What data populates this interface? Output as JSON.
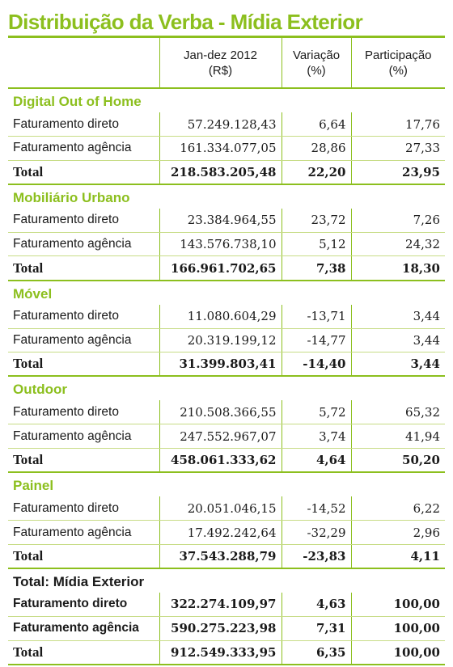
{
  "title": "Distribuição da Verba - Mídia Exterior",
  "columns": {
    "period_l1": "Jan-dez 2012",
    "period_l2": "(R$)",
    "var_l1": "Variação",
    "var_l2": "(%)",
    "part_l1": "Participação",
    "part_l2": "(%)"
  },
  "sections": [
    {
      "name": "Digital Out of Home",
      "rows": [
        {
          "label": "Faturamento direto",
          "value": "57.249.128,43",
          "variation": "6,64",
          "share": "17,76"
        },
        {
          "label": "Faturamento agência",
          "value": "161.334.077,05",
          "variation": "28,86",
          "share": "27,33"
        }
      ],
      "total": {
        "label": "Total",
        "value": "218.583.205,48",
        "variation": "22,20",
        "share": "23,95"
      }
    },
    {
      "name": "Mobiliário Urbano",
      "rows": [
        {
          "label": "Faturamento direto",
          "value": "23.384.964,55",
          "variation": "23,72",
          "share": "7,26"
        },
        {
          "label": "Faturamento agência",
          "value": "143.576.738,10",
          "variation": "5,12",
          "share": "24,32"
        }
      ],
      "total": {
        "label": "Total",
        "value": "166.961.702,65",
        "variation": "7,38",
        "share": "18,30"
      }
    },
    {
      "name": "Móvel",
      "rows": [
        {
          "label": "Faturamento direto",
          "value": "11.080.604,29",
          "variation": "-13,71",
          "share": "3,44"
        },
        {
          "label": "Faturamento agência",
          "value": "20.319.199,12",
          "variation": "-14,77",
          "share": "3,44"
        }
      ],
      "total": {
        "label": "Total",
        "value": "31.399.803,41",
        "variation": "-14,40",
        "share": "3,44"
      }
    },
    {
      "name": "Outdoor",
      "rows": [
        {
          "label": "Faturamento direto",
          "value": "210.508.366,55",
          "variation": "5,72",
          "share": "65,32"
        },
        {
          "label": "Faturamento agência",
          "value": "247.552.967,07",
          "variation": "3,74",
          "share": "41,94"
        }
      ],
      "total": {
        "label": "Total",
        "value": "458.061.333,62",
        "variation": "4,64",
        "share": "50,20"
      }
    },
    {
      "name": "Painel",
      "rows": [
        {
          "label": "Faturamento direto",
          "value": "20.051.046,15",
          "variation": "-14,52",
          "share": "6,22"
        },
        {
          "label": "Faturamento agência",
          "value": "17.492.242,64",
          "variation": "-32,29",
          "share": "2,96"
        }
      ],
      "total": {
        "label": "Total",
        "value": "37.543.288,79",
        "variation": "-23,83",
        "share": "4,11"
      }
    },
    {
      "name": "Total: Mídia Exterior",
      "rows": [
        {
          "label": "Faturamento direto",
          "value": "322.274.109,97",
          "variation": "4,63",
          "share": "100,00"
        },
        {
          "label": "Faturamento agência",
          "value": "590.275.223,98",
          "variation": "7,31",
          "share": "100,00"
        }
      ],
      "total": {
        "label": "Total",
        "value": "912.549.333,95",
        "variation": "6,35",
        "share": "100,00"
      }
    }
  ],
  "colors": {
    "accent": "#8cbf1e",
    "text": "#1a1a1a",
    "row_rule": "#c7dc86"
  }
}
